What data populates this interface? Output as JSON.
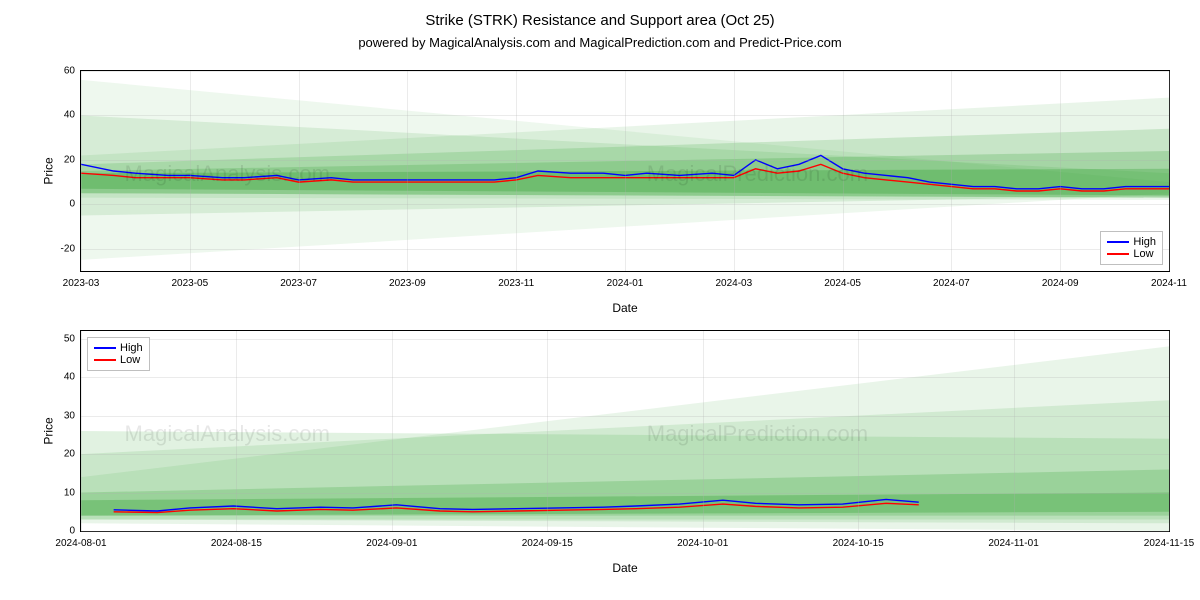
{
  "title": "Strike (STRK) Resistance and Support area (Oct 25)",
  "subtitle": "powered by MagicalAnalysis.com and MagicalPrediction.com and Predict-Price.com",
  "watermarks": [
    "MagicalAnalysis.com",
    "MagicalPrediction.com"
  ],
  "colors": {
    "high": "#0000ff",
    "low": "#ff0000",
    "band_fill": "#2ca02c",
    "band_alpha_min": 0.08,
    "band_alpha_max": 0.3,
    "axis": "#000000",
    "grid": "#b0b0b0",
    "background": "#ffffff"
  },
  "top_panel": {
    "ylabel": "Price",
    "xlabel": "Date",
    "ylim": [
      -30,
      60
    ],
    "yticks": [
      -20,
      0,
      20,
      40,
      60
    ],
    "xticks": [
      "2023-03",
      "2023-05",
      "2023-07",
      "2023-09",
      "2023-11",
      "2024-01",
      "2024-03",
      "2024-05",
      "2024-07",
      "2024-09",
      "2024-11"
    ],
    "legend": {
      "position": "lower-right",
      "items": [
        [
          "High",
          "#0000ff"
        ],
        [
          "Low",
          "#ff0000"
        ]
      ]
    },
    "data_x": [
      0,
      0.03,
      0.05,
      0.08,
      0.1,
      0.13,
      0.15,
      0.18,
      0.2,
      0.23,
      0.25,
      0.28,
      0.3,
      0.33,
      0.35,
      0.38,
      0.4,
      0.42,
      0.45,
      0.48,
      0.5,
      0.52,
      0.55,
      0.58,
      0.6,
      0.62,
      0.64,
      0.66,
      0.68,
      0.7,
      0.72,
      0.74,
      0.76,
      0.78,
      0.8,
      0.82,
      0.84,
      0.86,
      0.88,
      0.9,
      0.92,
      0.94,
      0.96,
      0.98,
      1.0
    ],
    "high": [
      18,
      15,
      14,
      13,
      13,
      12,
      12,
      13,
      11,
      12,
      11,
      11,
      11,
      11,
      11,
      11,
      12,
      15,
      14,
      14,
      13,
      14,
      13,
      14,
      13,
      20,
      16,
      18,
      22,
      16,
      14,
      13,
      12,
      10,
      9,
      8,
      8,
      7,
      7,
      8,
      7,
      7,
      8,
      8,
      8
    ],
    "low": [
      14,
      13,
      12,
      12,
      12,
      11,
      11,
      12,
      10,
      11,
      10,
      10,
      10,
      10,
      10,
      10,
      11,
      13,
      12,
      12,
      12,
      12,
      12,
      12,
      12,
      16,
      14,
      15,
      18,
      14,
      12,
      11,
      10,
      9,
      8,
      7,
      7,
      6,
      6,
      7,
      6,
      6,
      7,
      7,
      7
    ],
    "bands": [
      {
        "start_lo": -25,
        "start_hi": 56,
        "end_lo": 5,
        "end_hi": 10,
        "alpha": 0.08
      },
      {
        "start_lo": -5,
        "start_hi": 40,
        "end_lo": 4,
        "end_hi": 14,
        "alpha": 0.12
      },
      {
        "start_lo": 3,
        "start_hi": 22,
        "end_lo": 2,
        "end_hi": 48,
        "alpha": 0.1
      },
      {
        "start_lo": 5,
        "start_hi": 18,
        "end_lo": 3,
        "end_hi": 34,
        "alpha": 0.18
      },
      {
        "start_lo": 5,
        "start_hi": 15,
        "end_lo": 3,
        "end_hi": 24,
        "alpha": 0.22
      },
      {
        "start_lo": 7,
        "start_hi": 14,
        "end_lo": 4,
        "end_hi": 16,
        "alpha": 0.3
      }
    ]
  },
  "bottom_panel": {
    "ylabel": "Price",
    "xlabel": "Date",
    "ylim": [
      0,
      52
    ],
    "yticks": [
      0,
      10,
      20,
      30,
      40,
      50
    ],
    "xticks": [
      "2024-08-01",
      "2024-08-15",
      "2024-09-01",
      "2024-09-15",
      "2024-10-01",
      "2024-10-15",
      "2024-11-01",
      "2024-11-15"
    ],
    "legend": {
      "position": "upper-left",
      "items": [
        [
          "High",
          "#0000ff"
        ],
        [
          "Low",
          "#ff0000"
        ]
      ]
    },
    "data_x": [
      0.03,
      0.07,
      0.1,
      0.14,
      0.18,
      0.22,
      0.25,
      0.29,
      0.33,
      0.36,
      0.4,
      0.44,
      0.48,
      0.51,
      0.55,
      0.59,
      0.62,
      0.66,
      0.7,
      0.74,
      0.77
    ],
    "high": [
      5.5,
      5.2,
      6.0,
      6.5,
      5.8,
      6.2,
      6.0,
      6.8,
      5.8,
      5.6,
      5.8,
      6.0,
      6.2,
      6.5,
      7.0,
      8.0,
      7.2,
      6.8,
      7.0,
      8.2,
      7.5
    ],
    "low": [
      5.0,
      4.8,
      5.4,
      5.8,
      5.2,
      5.6,
      5.4,
      6.0,
      5.2,
      5.0,
      5.2,
      5.4,
      5.6,
      5.8,
      6.2,
      7.0,
      6.4,
      6.0,
      6.2,
      7.2,
      6.8
    ],
    "bands": [
      {
        "start_lo": 2,
        "start_hi": 14,
        "end_lo": 0,
        "end_hi": 48,
        "alpha": 0.1
      },
      {
        "start_lo": 3,
        "start_hi": 20,
        "end_lo": 2,
        "end_hi": 34,
        "alpha": 0.12
      },
      {
        "start_lo": 3,
        "start_hi": 26,
        "end_lo": 3,
        "end_hi": 24,
        "alpha": 0.14
      },
      {
        "start_lo": 4,
        "start_hi": 10,
        "end_lo": 4,
        "end_hi": 16,
        "alpha": 0.22
      },
      {
        "start_lo": 4,
        "start_hi": 8,
        "end_lo": 5,
        "end_hi": 10,
        "alpha": 0.3
      }
    ]
  }
}
